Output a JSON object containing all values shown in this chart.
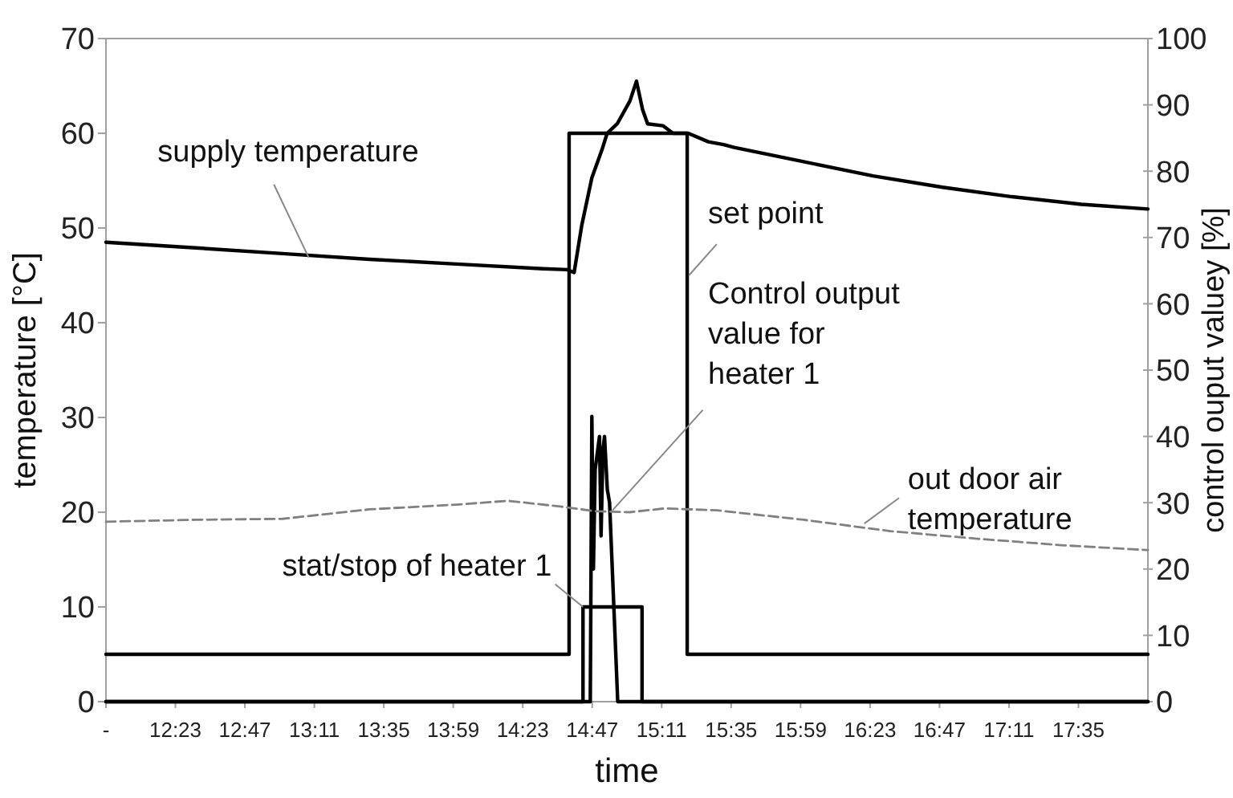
{
  "chart_data": {
    "type": "line",
    "xlabel": "time",
    "ylabel": "temperature [°C]",
    "y2label": "control ouput valuey [%]",
    "xlim": [
      11.983,
      17.983
    ],
    "xticks": [
      {
        "value": 11.983,
        "label": "-"
      },
      {
        "value": 12.383,
        "label": "12:23"
      },
      {
        "value": 12.783,
        "label": "12:47"
      },
      {
        "value": 13.183,
        "label": "13:11"
      },
      {
        "value": 13.583,
        "label": "13:35"
      },
      {
        "value": 13.983,
        "label": "13:59"
      },
      {
        "value": 14.383,
        "label": "14:23"
      },
      {
        "value": 14.783,
        "label": "14:47"
      },
      {
        "value": 15.183,
        "label": "15:11"
      },
      {
        "value": 15.583,
        "label": "15:35"
      },
      {
        "value": 15.983,
        "label": "15:59"
      },
      {
        "value": 16.383,
        "label": "16:23"
      },
      {
        "value": 16.783,
        "label": "16:47"
      },
      {
        "value": 17.183,
        "label": "17:11"
      },
      {
        "value": 17.583,
        "label": "17:35"
      }
    ],
    "ylim": [
      0,
      70
    ],
    "yticks": [
      0,
      10,
      20,
      30,
      40,
      50,
      60,
      70
    ],
    "y2lim": [
      0,
      100
    ],
    "y2ticks": [
      0,
      10,
      20,
      30,
      40,
      50,
      60,
      70,
      80,
      90,
      100
    ],
    "grid": false,
    "marker": "none",
    "series": [
      {
        "name": "supply temperature",
        "color": "#000000",
        "x": [
          11.983,
          12.5,
          13.0,
          13.5,
          14.0,
          14.5,
          14.64,
          14.679,
          14.723,
          14.781,
          14.84,
          14.869,
          14.927,
          15.0,
          15.038,
          15.073,
          15.102,
          15.19,
          15.248,
          15.336,
          15.452,
          15.54,
          15.6,
          16.0,
          16.4,
          16.8,
          17.2,
          17.6,
          17.983
        ],
        "values": [
          48.5,
          47.9,
          47.3,
          46.7,
          46.2,
          45.7,
          45.6,
          45.3,
          50.3,
          55.3,
          58.3,
          60,
          61,
          63.4,
          65.5,
          62.5,
          61,
          60.8,
          60,
          60,
          59.1,
          58.8,
          58.5,
          57,
          55.5,
          54.3,
          53.3,
          52.5,
          52
        ]
      },
      {
        "name": "set point",
        "type": "step",
        "color": "#000000",
        "x": [
          11.983,
          14.65,
          15.33,
          17.983
        ],
        "values": [
          5,
          60,
          5,
          5
        ]
      },
      {
        "name": "Control output value for heater 1",
        "axis": "y2",
        "color": "#000000",
        "x": [
          11.983,
          14.772,
          14.781,
          14.79,
          14.8,
          14.825,
          14.834,
          14.845,
          14.854,
          14.87,
          14.883,
          14.93,
          17.983
        ],
        "values": [
          0,
          0,
          43,
          20,
          35,
          40,
          25,
          38,
          40,
          32,
          30,
          0,
          0
        ]
      },
      {
        "name": "out door air temperature",
        "color": "#808080",
        "line_style": "dashed",
        "x": [
          11.983,
          12.5,
          13.0,
          13.5,
          14.0,
          14.3,
          14.6,
          14.8,
          15.0,
          15.2,
          15.5,
          16.0,
          16.5,
          17.0,
          17.5,
          17.983
        ],
        "values": [
          19,
          19.2,
          19.3,
          20.3,
          20.8,
          21.2,
          20.6,
          20.1,
          20,
          20.4,
          20.2,
          19.2,
          18,
          17.2,
          16.5,
          16
        ]
      },
      {
        "name": "stat/stop of heater 1",
        "type": "step",
        "color": "#000000",
        "x": [
          11.983,
          14.73,
          15.07,
          17.983
        ],
        "values": [
          0,
          10,
          0,
          0
        ]
      }
    ]
  }
}
